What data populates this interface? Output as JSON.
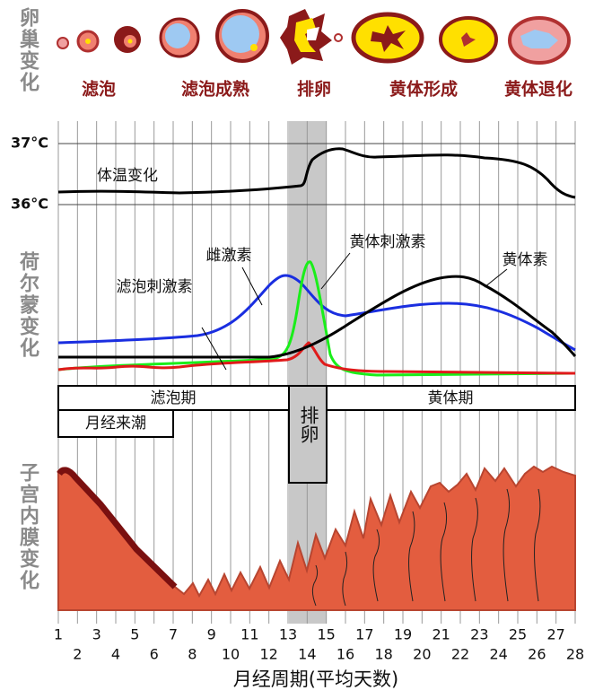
{
  "ovary": {
    "title": "卵巢变化",
    "stages": [
      "滤泡",
      "滤泡成熟",
      "排卵",
      "黄体形成",
      "黄体退化"
    ]
  },
  "temperature": {
    "ticks": [
      "37°C",
      "36°C"
    ],
    "label": "体温变化"
  },
  "hormones": {
    "title": "荷尔蒙变化",
    "labels": [
      "雌激素",
      "黄体刺激素",
      "黄体素",
      "滤泡刺激素"
    ]
  },
  "phases": {
    "follicular": "滤泡期",
    "ovulation": "排卵",
    "luteal": "黄体期",
    "menstruation": "月经来潮"
  },
  "endometrium": {
    "title": "子宫内膜变化"
  },
  "x_axis": {
    "days": [
      1,
      2,
      3,
      4,
      5,
      6,
      7,
      8,
      9,
      10,
      11,
      12,
      13,
      14,
      15,
      16,
      17,
      18,
      19,
      20,
      21,
      22,
      23,
      24,
      25,
      26,
      27,
      28
    ],
    "title": "月经周期(平均天数)"
  }
}
